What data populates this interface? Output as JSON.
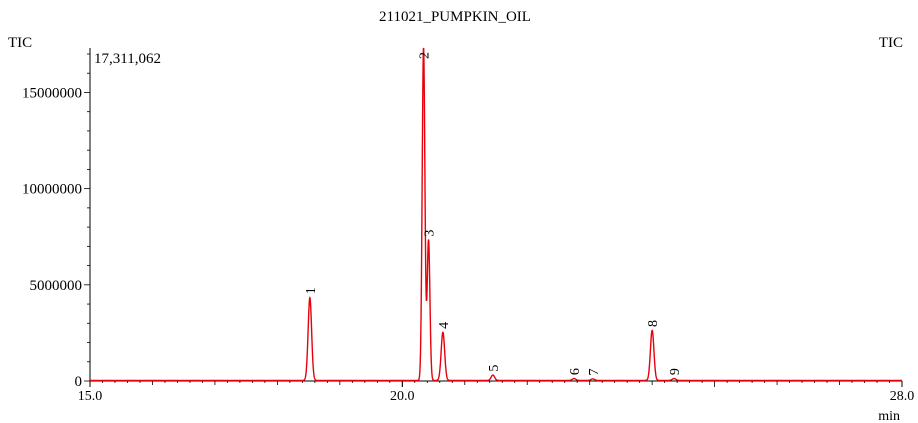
{
  "chart_data": {
    "type": "line",
    "title": "211021_PUMPKIN_OIL",
    "ylabel_left": "TIC",
    "trace_label_right": "TIC",
    "max_intensity_label": "17,311,062",
    "xlabel": "min",
    "xlim": [
      15.0,
      28.0
    ],
    "ylim": [
      0,
      17311062
    ],
    "x_ticks": [
      15.0,
      20.0,
      28.0
    ],
    "x_tick_labels": [
      "15.0",
      "20.0",
      "28.0"
    ],
    "y_ticks": [
      0,
      5000000,
      10000000,
      15000000
    ],
    "y_tick_labels": [
      "0",
      "5000000",
      "10000000",
      "15000000"
    ],
    "grid": false,
    "colors": {
      "trace": "#e8000b",
      "axis": "#000000",
      "peak_label": "#000000",
      "right_label": "#e8000b"
    },
    "series": [
      {
        "name": "TIC",
        "peaks": [
          {
            "label": "1",
            "rt": 18.52,
            "height": 4300000
          },
          {
            "label": "2",
            "rt": 20.34,
            "height": 17311062
          },
          {
            "label": "3",
            "rt": 20.42,
            "height": 7300000
          },
          {
            "label": "4",
            "rt": 20.65,
            "height": 2500000
          },
          {
            "label": "5",
            "rt": 21.45,
            "height": 280000
          },
          {
            "label": "6",
            "rt": 22.75,
            "height": 100000
          },
          {
            "label": "7",
            "rt": 23.05,
            "height": 80000
          },
          {
            "label": "8",
            "rt": 24.0,
            "height": 2600000
          },
          {
            "label": "9",
            "rt": 24.35,
            "height": 100000
          }
        ]
      }
    ]
  }
}
